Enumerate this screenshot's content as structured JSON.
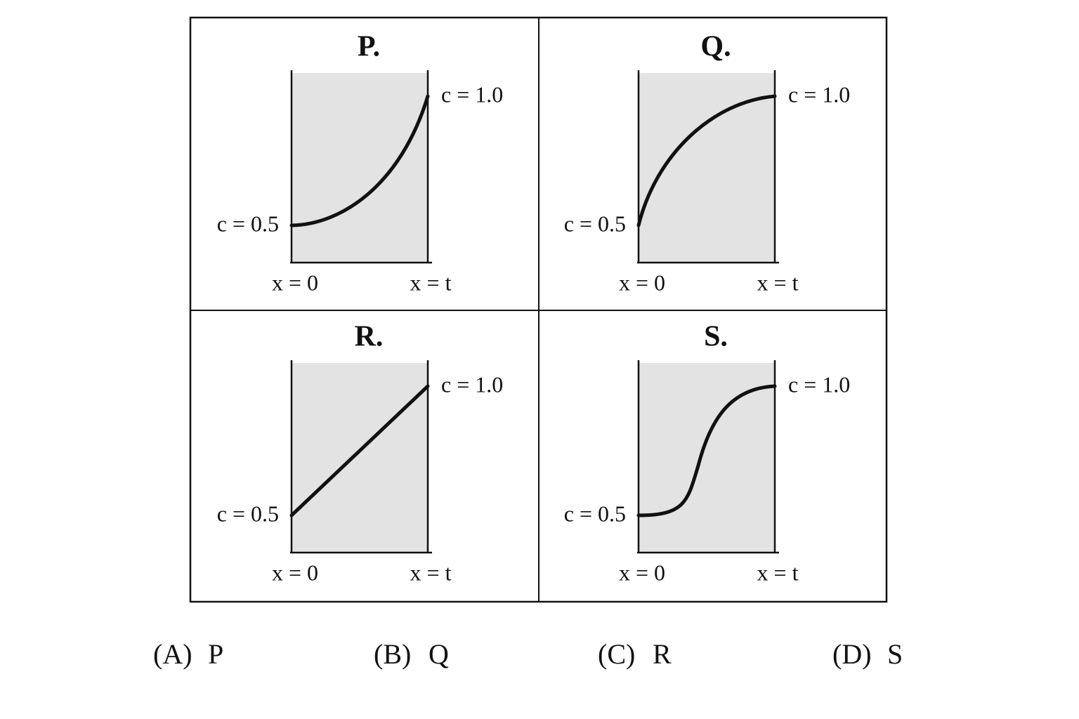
{
  "panels": [
    {
      "title": "P.",
      "low_label": "c = 0.5",
      "high_label": "c = 1.0",
      "x_start": "x = 0",
      "x_end": "x = t"
    },
    {
      "title": "Q.",
      "low_label": "c = 0.5",
      "high_label": "c = 1.0",
      "x_start": "x = 0",
      "x_end": "x = t"
    },
    {
      "title": "R.",
      "low_label": "c = 0.5",
      "high_label": "c = 1.0",
      "x_start": "x = 0",
      "x_end": "x = t"
    },
    {
      "title": "S.",
      "low_label": "c = 0.5",
      "high_label": "c = 1.0",
      "x_start": "x = 0",
      "x_end": "x = t"
    }
  ],
  "options": [
    {
      "letter": "(A)",
      "text": "P"
    },
    {
      "letter": "(B)",
      "text": "Q"
    },
    {
      "letter": "(C)",
      "text": "R"
    },
    {
      "letter": "(D)",
      "text": "S"
    }
  ]
}
